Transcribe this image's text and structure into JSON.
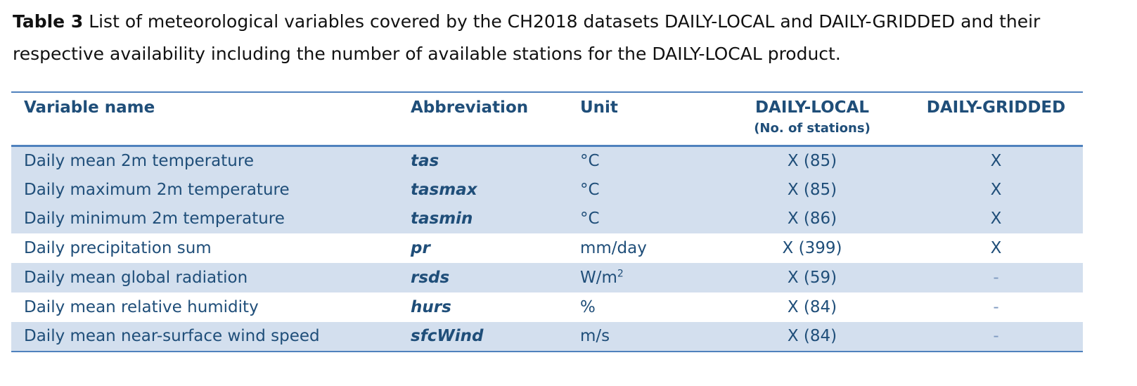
{
  "caption": {
    "label": "Table 3",
    "text": "List of meteorological variables covered by the CH2018 datasets DAILY-LOCAL and DAILY-GRIDDED and their respective availability including the number of available stations for the DAILY-LOCAL product."
  },
  "table": {
    "headers": {
      "variable": "Variable name",
      "abbreviation": "Abbreviation",
      "unit": "Unit",
      "local": "DAILY-LOCAL",
      "local_sub": "(No. of stations)",
      "gridded": "DAILY-GRIDDED"
    },
    "rows": [
      {
        "variable": "Daily mean 2m temperature",
        "abbreviation": "tas",
        "unit": "°C",
        "unit_sup": "",
        "local": "X (85)",
        "gridded": "X"
      },
      {
        "variable": "Daily maximum 2m temperature",
        "abbreviation": "tasmax",
        "unit": "°C",
        "unit_sup": "",
        "local": "X (85)",
        "gridded": "X"
      },
      {
        "variable": "Daily minimum 2m temperature",
        "abbreviation": "tasmin",
        "unit": "°C",
        "unit_sup": "",
        "local": "X (86)",
        "gridded": "X"
      },
      {
        "variable": "Daily precipitation sum",
        "abbreviation": "pr",
        "unit": "mm/day",
        "unit_sup": "",
        "local": "X (399)",
        "gridded": "X"
      },
      {
        "variable": "Daily mean global radiation",
        "abbreviation": "rsds",
        "unit": "W/m",
        "unit_sup": "2",
        "local": "X (59)",
        "gridded": "-"
      },
      {
        "variable": "Daily mean relative humidity",
        "abbreviation": "hurs",
        "unit": "%",
        "unit_sup": "",
        "local": "X (84)",
        "gridded": "-"
      },
      {
        "variable": "Daily mean near-surface wind speed",
        "abbreviation": "sfcWind",
        "unit": "m/s",
        "unit_sup": "",
        "local": "X (84)",
        "gridded": "-"
      }
    ]
  }
}
